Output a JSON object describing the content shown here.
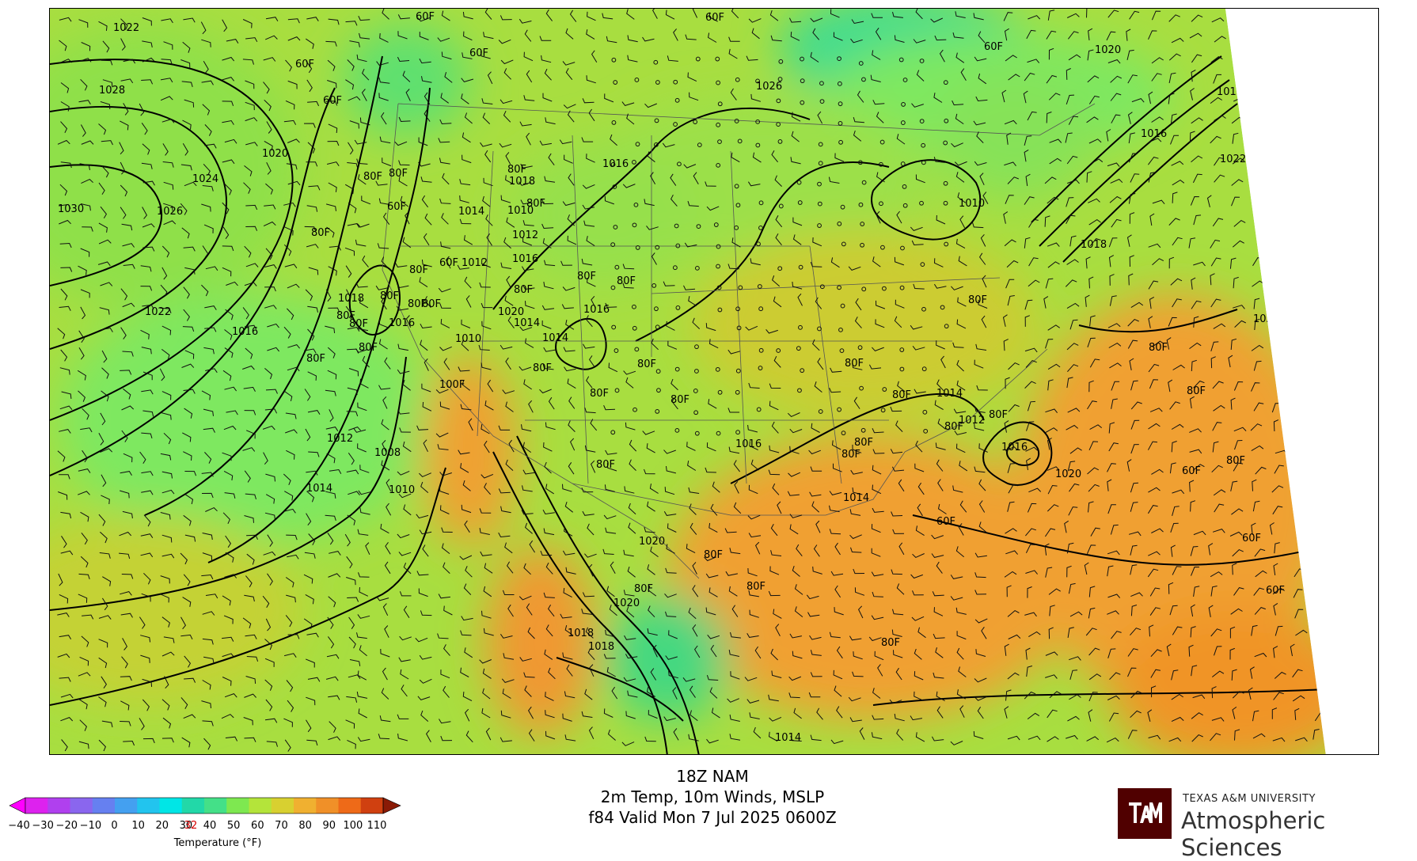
{
  "title": {
    "line1": "18Z NAM",
    "line2": "2m Temp, 10m Winds, MSLP",
    "line3": "f84 Valid Mon 7 Jul 2025 0600Z"
  },
  "legend": {
    "label": "Temperature (°F)",
    "ticks": [
      "-40",
      "-30",
      "-20",
      "-10",
      "0",
      "10",
      "20",
      "30",
      "32",
      "40",
      "50",
      "60",
      "70",
      "80",
      "90",
      "100",
      "110"
    ],
    "highlight_tick": "32",
    "highlight_color": "#d40000",
    "colors": [
      "#ff00ff",
      "#dd22ee",
      "#b040ee",
      "#8a66ee",
      "#6680f0",
      "#44a0f0",
      "#22c4ee",
      "#00e6e6",
      "#22d8a8",
      "#44e088",
      "#7ee850",
      "#b4e43a",
      "#d8d030",
      "#f0b030",
      "#f09028",
      "#ee6a18",
      "#d04010",
      "#8a1a06"
    ]
  },
  "branding": {
    "university": "TEXAS A&M UNIVERSITY",
    "department": "Atmospheric Sciences",
    "logo_color": "#500000",
    "logo_icon": "atm-logo-icon"
  },
  "map": {
    "isobar_labels": [
      "1022",
      "1028",
      "1030",
      "1026",
      "1024",
      "1020",
      "1016",
      "1022",
      "1014",
      "1012",
      "1010",
      "1008",
      "1016",
      "1018",
      "1020",
      "1014",
      "1016",
      "1010",
      "1012",
      "1014",
      "1018",
      "1016",
      "1014",
      "1012",
      "1010",
      "1016",
      "1022",
      "1018",
      "1016",
      "1020",
      "1024",
      "1014",
      "1020",
      "1018",
      "1010",
      "1014",
      "1016",
      "1026",
      "1020",
      "1014",
      "1012",
      "1016",
      "1020",
      "1018",
      "1014"
    ],
    "temp_labels": [
      "60F",
      "60F",
      "60F",
      "60F",
      "60F",
      "60F",
      "80F",
      "80F",
      "60F",
      "80F",
      "80F",
      "80F",
      "60F",
      "80F",
      "80F",
      "80F",
      "80F",
      "80F",
      "80F",
      "100F",
      "80F",
      "80F",
      "80F",
      "80F",
      "80F",
      "80F",
      "80F",
      "80F",
      "80F",
      "80F",
      "80F",
      "80F",
      "80F",
      "80F",
      "80F",
      "80F",
      "80F",
      "80F",
      "80F",
      "80F",
      "80F",
      "80F",
      "80F",
      "60F",
      "60F",
      "60F",
      "60F",
      "60F",
      "80F"
    ],
    "wind_icon": "wind-barb-icon"
  }
}
